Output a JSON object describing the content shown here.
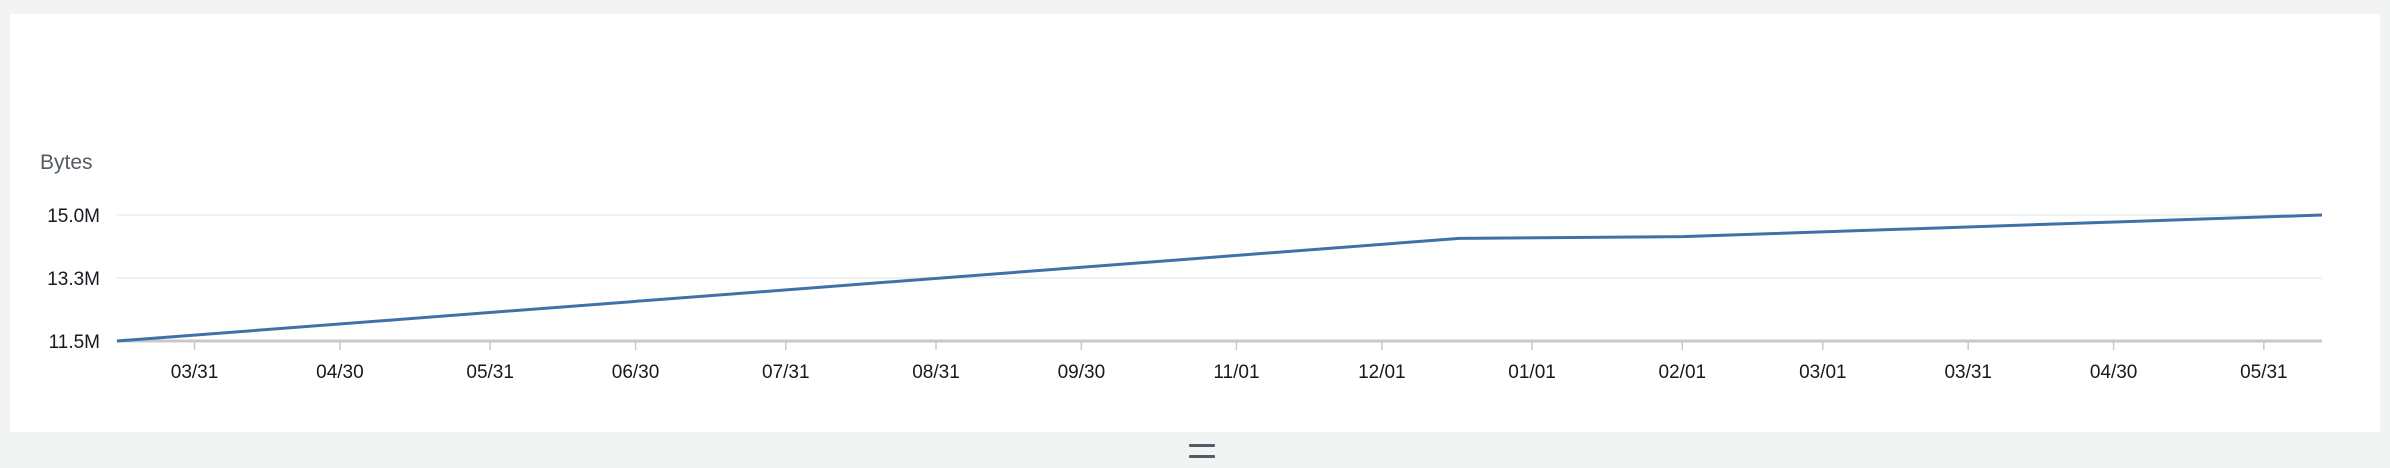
{
  "chart_data": {
    "type": "line",
    "ylabel": "Bytes",
    "y_ticks": [
      "15.0M",
      "13.3M",
      "11.5M"
    ],
    "y_tick_values": [
      15.0,
      13.25,
      11.5
    ],
    "ylim": [
      11.5,
      15.0
    ],
    "x_ticks": [
      "03/31",
      "04/30",
      "05/31",
      "06/30",
      "07/31",
      "08/31",
      "09/30",
      "11/01",
      "12/01",
      "01/01",
      "02/01",
      "03/01",
      "03/31",
      "04/30",
      "05/31"
    ],
    "x_tick_dates": [
      "2023-03-31",
      "2023-04-30",
      "2023-05-31",
      "2023-06-30",
      "2023-07-31",
      "2023-08-31",
      "2023-09-30",
      "2023-11-01",
      "2023-12-01",
      "2024-01-01",
      "2024-02-01",
      "2024-03-01",
      "2024-03-31",
      "2024-04-30",
      "2024-05-31"
    ],
    "x_range": [
      "2023-03-15",
      "2024-06-12"
    ],
    "grid": true,
    "legend": "none",
    "series": [
      {
        "color": "#3f71a8",
        "points": [
          {
            "x": "2023-03-15",
            "y": 11.5
          },
          {
            "x": "2023-12-17",
            "y": 14.35
          },
          {
            "x": "2024-02-01",
            "y": 14.4
          },
          {
            "x": "2024-06-12",
            "y": 15.0
          }
        ]
      }
    ]
  },
  "ui": {
    "resize_handle_icon": "drag-handle-icon"
  }
}
